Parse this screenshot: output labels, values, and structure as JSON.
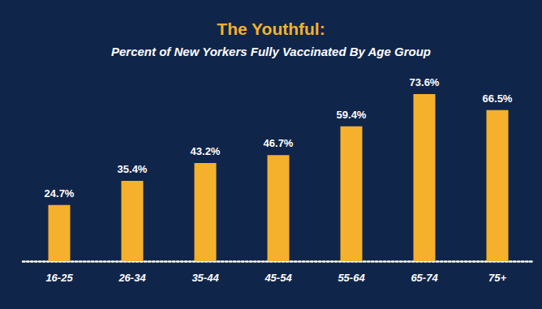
{
  "chart_data": {
    "type": "bar",
    "title": "The Youthful:",
    "subtitle": "Percent of New Yorkers Fully Vaccinated By Age Group",
    "categories": [
      "16-25",
      "26-34",
      "35-44",
      "45-54",
      "55-64",
      "65-74",
      "75+"
    ],
    "values": [
      24.7,
      35.4,
      43.2,
      46.7,
      59.4,
      73.6,
      66.5
    ],
    "value_labels": [
      "24.7%",
      "35.4%",
      "43.2%",
      "46.7%",
      "59.4%",
      "73.6%",
      "66.5%"
    ],
    "color": "#f5b12b",
    "ylim": [
      0,
      80
    ],
    "grid": false,
    "data_labels": true,
    "tick_labels": "x"
  }
}
